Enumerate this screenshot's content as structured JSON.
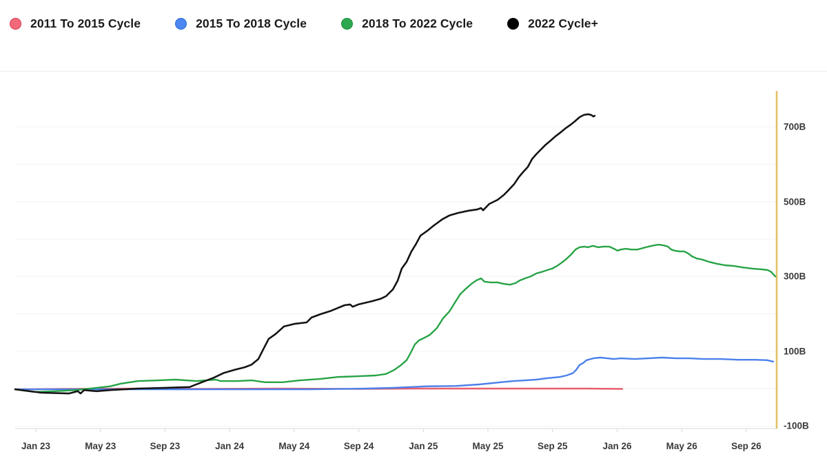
{
  "legend": {
    "items": [
      {
        "label": "2011 To 2015 Cycle",
        "color": "#f2697a",
        "border": "#d93a52"
      },
      {
        "label": "2015 To 2018 Cycle",
        "color": "#4c86f0",
        "border": "#2d6bd9"
      },
      {
        "label": "2018 To 2022 Cycle",
        "color": "#2da84e",
        "border": "#1d8f3e"
      },
      {
        "label": "2022 Cycle+",
        "color": "#000000",
        "border": "#000000"
      }
    ]
  },
  "axis": {
    "accent_color": "#e2bf66",
    "grid_color": "#f4f4f4",
    "baseline_color": "#e6e6e6",
    "tick_color": "#dddddd"
  },
  "chart_data": {
    "type": "line",
    "title": "",
    "xlabel": "",
    "ylabel": "",
    "x_unit": "months since Jan 2023",
    "y_unit": "billions (B)",
    "ylim": [
      -100,
      760
    ],
    "grid": true,
    "grid_values": [
      -100,
      0,
      100,
      200,
      300,
      400,
      500,
      600,
      700
    ],
    "legend_position": "top-left",
    "x_ticks": [
      {
        "t": 0,
        "label": "Jan 23"
      },
      {
        "t": 4,
        "label": "May 23"
      },
      {
        "t": 8,
        "label": "Sep 23"
      },
      {
        "t": 12,
        "label": "Jan 24"
      },
      {
        "t": 16,
        "label": "May 24"
      },
      {
        "t": 20,
        "label": "Sep 24"
      },
      {
        "t": 24,
        "label": "Jan 25"
      },
      {
        "t": 28,
        "label": "May 25"
      },
      {
        "t": 32,
        "label": "Sep 25"
      },
      {
        "t": 36,
        "label": "Jan 26"
      },
      {
        "t": 40,
        "label": "May 26"
      },
      {
        "t": 44,
        "label": "Sep 26"
      }
    ],
    "y_ticks": [
      {
        "v": 700,
        "label": "700B"
      },
      {
        "v": 500,
        "label": "500B"
      },
      {
        "v": 300,
        "label": "300B"
      },
      {
        "v": 100,
        "label": "100B"
      },
      {
        "v": -100,
        "label": "-100B"
      }
    ],
    "series": [
      {
        "name": "2011 To 2015 Cycle",
        "color": "#e85d6c",
        "width": 2.4,
        "points": [
          [
            -1.28,
            -2
          ],
          [
            2,
            -1
          ],
          [
            6.32,
            0
          ],
          [
            10,
            -1
          ],
          [
            14.85,
            0
          ],
          [
            20,
            -1
          ],
          [
            23.39,
            0
          ],
          [
            27.66,
            0
          ],
          [
            31.92,
            0
          ],
          [
            34.06,
            0
          ],
          [
            36.32,
            -1
          ]
        ]
      },
      {
        "name": "2015 To 2018 Cycle",
        "color": "#4a80ea",
        "width": 2.4,
        "points": [
          [
            -1.28,
            -2
          ],
          [
            4.18,
            -2
          ],
          [
            10.58,
            -2
          ],
          [
            16.99,
            -2
          ],
          [
            20.4,
            0
          ],
          [
            22.11,
            2
          ],
          [
            24.24,
            6
          ],
          [
            26.03,
            7
          ],
          [
            27.44,
            11
          ],
          [
            28.81,
            17
          ],
          [
            29.58,
            20
          ],
          [
            30.3,
            22
          ],
          [
            30.99,
            24
          ],
          [
            31.71,
            28
          ],
          [
            32.44,
            31
          ],
          [
            32.86,
            35
          ],
          [
            33.25,
            41
          ],
          [
            33.46,
            50
          ],
          [
            33.67,
            63
          ],
          [
            33.89,
            68
          ],
          [
            34.1,
            76
          ],
          [
            34.53,
            81
          ],
          [
            34.96,
            83
          ],
          [
            35.38,
            81
          ],
          [
            35.81,
            79
          ],
          [
            36.23,
            81
          ],
          [
            37.09,
            79
          ],
          [
            37.94,
            81
          ],
          [
            38.8,
            83
          ],
          [
            39.65,
            81
          ],
          [
            40.5,
            81
          ],
          [
            41.36,
            79
          ],
          [
            42.43,
            79
          ],
          [
            43.49,
            77
          ],
          [
            44.56,
            77
          ],
          [
            45.29,
            76
          ],
          [
            45.67,
            72
          ]
        ]
      },
      {
        "name": "2018 To 2022 Cycle",
        "color": "#27a346",
        "width": 2.4,
        "points": [
          [
            -1.28,
            -2
          ],
          [
            -0.09,
            -9
          ],
          [
            1.2,
            -7
          ],
          [
            2.48,
            -4
          ],
          [
            3.76,
            2
          ],
          [
            4.61,
            6
          ],
          [
            5.25,
            13
          ],
          [
            6.32,
            20
          ],
          [
            7.6,
            22
          ],
          [
            8.66,
            24
          ],
          [
            9.94,
            20
          ],
          [
            11.14,
            24
          ],
          [
            11.44,
            20
          ],
          [
            12.51,
            20
          ],
          [
            13.36,
            22
          ],
          [
            14.21,
            17
          ],
          [
            15.28,
            17
          ],
          [
            16.35,
            22
          ],
          [
            17.63,
            26
          ],
          [
            18.7,
            31
          ],
          [
            19.97,
            33
          ],
          [
            21.04,
            35
          ],
          [
            21.68,
            39
          ],
          [
            22.2,
            50
          ],
          [
            22.62,
            63
          ],
          [
            22.96,
            76
          ],
          [
            23.22,
            96
          ],
          [
            23.47,
            118
          ],
          [
            23.73,
            129
          ],
          [
            24.07,
            136
          ],
          [
            24.41,
            144
          ],
          [
            24.84,
            162
          ],
          [
            25.22,
            188
          ],
          [
            25.61,
            206
          ],
          [
            25.95,
            230
          ],
          [
            26.29,
            253
          ],
          [
            26.63,
            267
          ],
          [
            26.97,
            280
          ],
          [
            27.27,
            289
          ],
          [
            27.57,
            295
          ],
          [
            27.78,
            286
          ],
          [
            28.17,
            284
          ],
          [
            28.6,
            284
          ],
          [
            28.98,
            280
          ],
          [
            29.36,
            278
          ],
          [
            29.7,
            282
          ],
          [
            29.96,
            289
          ],
          [
            30.3,
            295
          ],
          [
            30.64,
            300
          ],
          [
            30.99,
            308
          ],
          [
            31.33,
            312
          ],
          [
            31.67,
            317
          ],
          [
            31.97,
            321
          ],
          [
            32.27,
            328
          ],
          [
            32.57,
            337
          ],
          [
            32.86,
            347
          ],
          [
            33.16,
            359
          ],
          [
            33.42,
            372
          ],
          [
            33.67,
            378
          ],
          [
            33.97,
            380
          ],
          [
            34.19,
            378
          ],
          [
            34.49,
            382
          ],
          [
            34.83,
            378
          ],
          [
            35.17,
            380
          ],
          [
            35.51,
            380
          ],
          [
            35.81,
            374
          ],
          [
            36.02,
            369
          ],
          [
            36.23,
            372
          ],
          [
            36.53,
            374
          ],
          [
            36.88,
            372
          ],
          [
            37.26,
            372
          ],
          [
            37.6,
            376
          ],
          [
            37.94,
            380
          ],
          [
            38.28,
            383
          ],
          [
            38.58,
            385
          ],
          [
            38.88,
            383
          ],
          [
            39.14,
            380
          ],
          [
            39.35,
            372
          ],
          [
            39.56,
            369
          ],
          [
            39.86,
            367
          ],
          [
            40.16,
            367
          ],
          [
            40.42,
            361
          ],
          [
            40.63,
            354
          ],
          [
            40.93,
            348
          ],
          [
            41.27,
            345
          ],
          [
            41.7,
            339
          ],
          [
            42.17,
            334
          ],
          [
            42.68,
            330
          ],
          [
            43.24,
            328
          ],
          [
            43.79,
            324
          ],
          [
            44.39,
            321
          ],
          [
            44.95,
            319
          ],
          [
            45.33,
            317
          ],
          [
            45.54,
            312
          ],
          [
            45.71,
            304
          ],
          [
            45.8,
            300
          ]
        ]
      },
      {
        "name": "2022 Cycle+",
        "color": "#141414",
        "width": 2.6,
        "points": [
          [
            -1.28,
            -2
          ],
          [
            0.34,
            -11
          ],
          [
            2.05,
            -13
          ],
          [
            2.6,
            -7
          ],
          [
            2.77,
            -13
          ],
          [
            2.99,
            -4
          ],
          [
            3.76,
            -7
          ],
          [
            4.61,
            -4
          ],
          [
            6.32,
            0
          ],
          [
            8.02,
            2
          ],
          [
            9.52,
            4
          ],
          [
            10.16,
            15
          ],
          [
            11.01,
            29
          ],
          [
            11.65,
            42
          ],
          [
            12.29,
            50
          ],
          [
            12.93,
            57
          ],
          [
            13.36,
            64
          ],
          [
            13.78,
            79
          ],
          [
            14.13,
            109
          ],
          [
            14.42,
            133
          ],
          [
            14.85,
            146
          ],
          [
            15.36,
            166
          ],
          [
            16.01,
            173
          ],
          [
            16.77,
            177
          ],
          [
            17.07,
            190
          ],
          [
            17.63,
            199
          ],
          [
            18.27,
            208
          ],
          [
            19.12,
            223
          ],
          [
            19.46,
            225
          ],
          [
            19.63,
            219
          ],
          [
            19.97,
            225
          ],
          [
            20.83,
            234
          ],
          [
            21.34,
            240
          ],
          [
            21.68,
            247
          ],
          [
            22.11,
            265
          ],
          [
            22.41,
            289
          ],
          [
            22.66,
            321
          ],
          [
            22.96,
            339
          ],
          [
            23.26,
            367
          ],
          [
            23.52,
            385
          ],
          [
            23.82,
            409
          ],
          [
            24.24,
            422
          ],
          [
            24.67,
            437
          ],
          [
            25.18,
            453
          ],
          [
            25.61,
            463
          ],
          [
            26.16,
            470
          ],
          [
            26.8,
            476
          ],
          [
            27.32,
            479
          ],
          [
            27.57,
            483
          ],
          [
            27.7,
            477
          ],
          [
            28.08,
            494
          ],
          [
            28.6,
            505
          ],
          [
            28.98,
            518
          ],
          [
            29.28,
            531
          ],
          [
            29.62,
            547
          ],
          [
            29.92,
            566
          ],
          [
            30.17,
            579
          ],
          [
            30.47,
            593
          ],
          [
            30.73,
            614
          ],
          [
            30.99,
            627
          ],
          [
            31.24,
            638
          ],
          [
            31.54,
            651
          ],
          [
            31.84,
            662
          ],
          [
            32.18,
            675
          ],
          [
            32.52,
            686
          ],
          [
            32.82,
            697
          ],
          [
            33.12,
            706
          ],
          [
            33.38,
            715
          ],
          [
            33.67,
            726
          ],
          [
            33.93,
            732
          ],
          [
            34.19,
            734
          ],
          [
            34.4,
            732
          ],
          [
            34.53,
            728
          ],
          [
            34.61,
            730
          ]
        ]
      }
    ]
  }
}
